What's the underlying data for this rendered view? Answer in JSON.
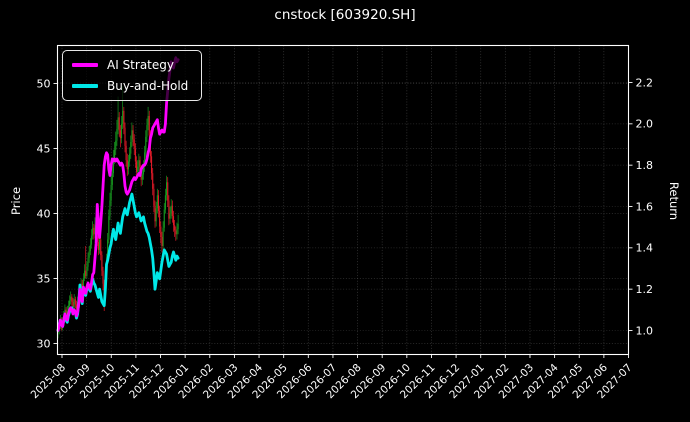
{
  "title": "cnstock [603920.SH]",
  "legend": {
    "entries": [
      {
        "label": "AI Strategy",
        "color": "#ff00ff"
      },
      {
        "label": "Buy-and-Hold",
        "color": "#00e8e8"
      }
    ],
    "position": "upper left"
  },
  "chart_data": {
    "type": "candlestick_with_lines",
    "title": "cnstock [603920.SH]",
    "left_axis": {
      "label": "Price",
      "ticks": [
        30,
        35,
        40,
        45,
        50
      ],
      "ylim": [
        29.2,
        52.9
      ]
    },
    "right_axis": {
      "label": "Return",
      "ticks": [
        "1.0",
        "1.2",
        "1.4",
        "1.6",
        "1.8",
        "2.0",
        "2.2"
      ],
      "ylim": [
        0.89,
        2.38
      ]
    },
    "x_tick_labels": [
      "2025-08",
      "2025-09",
      "2025-10",
      "2025-11",
      "2025-12",
      "2026-01",
      "2026-02",
      "2026-03",
      "2026-04",
      "2026-05",
      "2026-06",
      "2026-07",
      "2026-08",
      "2026-09",
      "2026-10",
      "2026-11",
      "2026-12",
      "2027-01",
      "2027-02",
      "2027-03",
      "2027-04",
      "2027-05",
      "2027-06",
      "2027-07"
    ],
    "data_span": {
      "start": "2025-08",
      "end": "2026-01",
      "trading_days": 105
    },
    "grid": true,
    "background": "#000000",
    "candle_colors": {
      "up": "#17991f",
      "down": "#e01a28"
    },
    "candles_ohlc": [
      [
        30.8,
        31.4,
        30.4,
        31.0
      ],
      [
        31.0,
        31.8,
        30.7,
        31.4
      ],
      [
        31.4,
        32.2,
        31.1,
        31.8
      ],
      [
        31.8,
        32.0,
        31.0,
        31.3
      ],
      [
        31.3,
        32.0,
        31.0,
        31.6
      ],
      [
        31.6,
        32.5,
        31.4,
        32.1
      ],
      [
        32.1,
        33.0,
        31.9,
        32.6
      ],
      [
        32.6,
        32.8,
        31.9,
        32.2
      ],
      [
        32.2,
        32.9,
        32.0,
        32.5
      ],
      [
        32.5,
        33.3,
        32.3,
        32.9
      ],
      [
        32.9,
        33.7,
        32.6,
        33.3
      ],
      [
        33.3,
        34.0,
        33.0,
        33.6
      ],
      [
        33.6,
        33.8,
        32.9,
        33.2
      ],
      [
        33.2,
        33.5,
        32.5,
        32.8
      ],
      [
        32.8,
        33.8,
        32.6,
        33.4
      ],
      [
        33.4,
        33.6,
        32.7,
        33.0
      ],
      [
        33.0,
        33.3,
        32.4,
        32.7
      ],
      [
        32.7,
        33.6,
        32.5,
        33.2
      ],
      [
        33.2,
        34.2,
        33.0,
        33.8
      ],
      [
        33.8,
        34.6,
        33.5,
        34.2
      ],
      [
        34.2,
        35.0,
        33.9,
        34.6
      ],
      [
        34.6,
        34.9,
        33.8,
        34.1
      ],
      [
        34.1,
        35.4,
        33.9,
        35.0
      ],
      [
        35.0,
        36.1,
        34.8,
        35.6
      ],
      [
        35.6,
        37.5,
        35.0,
        35.2
      ],
      [
        35.2,
        36.3,
        35.0,
        35.9
      ],
      [
        35.9,
        37.0,
        35.6,
        36.6
      ],
      [
        36.6,
        37.5,
        36.2,
        37.1
      ],
      [
        37.1,
        38.1,
        36.8,
        37.6
      ],
      [
        37.6,
        38.8,
        37.3,
        38.3
      ],
      [
        38.3,
        39.4,
        38.0,
        38.9
      ],
      [
        38.9,
        39.2,
        38.0,
        38.4
      ],
      [
        38.4,
        39.7,
        38.1,
        39.1
      ],
      [
        39.1,
        39.4,
        38.2,
        38.5
      ],
      [
        38.5,
        40.4,
        37.5,
        37.8
      ],
      [
        37.8,
        38.5,
        36.8,
        37.2
      ],
      [
        37.2,
        38.6,
        36.9,
        38.0
      ],
      [
        38.0,
        38.2,
        36.4,
        36.8
      ],
      [
        36.8,
        37.1,
        35.2,
        35.6
      ],
      [
        35.6,
        35.9,
        34.1,
        34.6
      ],
      [
        34.6,
        34.9,
        32.5,
        33.6
      ],
      [
        33.6,
        35.3,
        33.3,
        34.8
      ],
      [
        34.8,
        36.9,
        34.5,
        36.4
      ],
      [
        36.4,
        38.5,
        36.1,
        38.0
      ],
      [
        38.0,
        40.3,
        37.7,
        39.8
      ],
      [
        39.8,
        41.6,
        39.5,
        41.0
      ],
      [
        41.0,
        43.4,
        40.6,
        42.2
      ],
      [
        42.2,
        43.8,
        41.8,
        43.1
      ],
      [
        43.1,
        44.9,
        42.8,
        44.2
      ],
      [
        44.2,
        45.5,
        43.8,
        44.9
      ],
      [
        44.9,
        46.3,
        44.5,
        45.6
      ],
      [
        45.6,
        47.2,
        45.2,
        46.5
      ],
      [
        46.5,
        49.0,
        46.1,
        47.4
      ],
      [
        47.4,
        47.8,
        45.9,
        46.4
      ],
      [
        46.4,
        46.8,
        45.1,
        45.8
      ],
      [
        45.8,
        47.5,
        45.4,
        46.9
      ],
      [
        46.9,
        49.8,
        46.5,
        47.9
      ],
      [
        47.9,
        48.2,
        46.1,
        46.6
      ],
      [
        46.6,
        47.0,
        44.7,
        45.2
      ],
      [
        45.2,
        45.6,
        43.6,
        44.1
      ],
      [
        44.1,
        44.6,
        42.9,
        43.4
      ],
      [
        43.4,
        44.5,
        43.0,
        44.0
      ],
      [
        44.0,
        45.1,
        43.6,
        44.6
      ],
      [
        44.6,
        46.0,
        44.2,
        45.5
      ],
      [
        45.5,
        47.0,
        45.1,
        46.4
      ],
      [
        46.4,
        46.8,
        45.2,
        45.7
      ],
      [
        45.7,
        46.1,
        44.5,
        45.0
      ],
      [
        45.0,
        45.4,
        43.5,
        44.0
      ],
      [
        44.0,
        44.4,
        42.7,
        43.2
      ],
      [
        43.2,
        44.1,
        42.8,
        43.6
      ],
      [
        43.6,
        44.6,
        43.2,
        44.1
      ],
      [
        44.1,
        44.4,
        42.8,
        43.3
      ],
      [
        43.3,
        43.7,
        42.1,
        42.6
      ],
      [
        42.6,
        43.5,
        42.2,
        43.0
      ],
      [
        43.0,
        44.1,
        42.6,
        43.6
      ],
      [
        43.6,
        45.2,
        43.2,
        44.7
      ],
      [
        44.7,
        46.4,
        44.3,
        45.9
      ],
      [
        45.9,
        47.3,
        45.5,
        46.8
      ],
      [
        46.8,
        48.2,
        46.4,
        47.5
      ],
      [
        47.5,
        47.9,
        45.5,
        46.0
      ],
      [
        46.0,
        46.4,
        43.9,
        44.4
      ],
      [
        44.4,
        44.8,
        42.6,
        43.1
      ],
      [
        43.1,
        43.5,
        41.4,
        41.9
      ],
      [
        41.9,
        42.3,
        40.1,
        40.6
      ],
      [
        40.6,
        41.0,
        38.9,
        39.4
      ],
      [
        39.4,
        40.9,
        39.0,
        40.4
      ],
      [
        40.4,
        41.9,
        40.0,
        41.4
      ],
      [
        41.4,
        41.8,
        39.7,
        40.2
      ],
      [
        40.2,
        40.6,
        38.5,
        39.0
      ],
      [
        39.0,
        39.4,
        37.7,
        38.2
      ],
      [
        38.2,
        38.6,
        37.0,
        37.5
      ],
      [
        37.5,
        39.4,
        37.2,
        38.9
      ],
      [
        38.9,
        40.8,
        38.6,
        40.3
      ],
      [
        40.3,
        41.9,
        40.0,
        41.4
      ],
      [
        41.4,
        42.9,
        41.0,
        42.4
      ],
      [
        42.4,
        42.8,
        40.5,
        41.0
      ],
      [
        41.0,
        41.4,
        39.1,
        39.6
      ],
      [
        39.6,
        40.5,
        39.2,
        40.0
      ],
      [
        40.0,
        41.1,
        39.6,
        40.6
      ],
      [
        40.6,
        41.0,
        39.3,
        39.8
      ],
      [
        39.8,
        40.2,
        38.6,
        39.1
      ],
      [
        39.1,
        39.5,
        38.2,
        38.7
      ],
      [
        38.7,
        39.0,
        37.9,
        38.4
      ],
      [
        38.4,
        39.3,
        38.0,
        38.8
      ],
      [
        38.8,
        39.9,
        38.4,
        39.2
      ]
    ],
    "series": [
      {
        "name": "AI Strategy",
        "axis": "return",
        "color": "#ff00ff",
        "values": [
          1.0,
          1.02,
          1.05,
          1.03,
          1.02,
          1.05,
          1.08,
          1.06,
          1.05,
          1.08,
          1.1,
          1.11,
          1.1,
          1.08,
          1.1,
          1.09,
          1.07,
          1.09,
          1.13,
          1.2,
          1.16,
          1.14,
          1.21,
          1.19,
          1.18,
          1.21,
          1.23,
          1.21,
          1.2,
          1.23,
          1.27,
          1.28,
          1.35,
          1.42,
          1.61,
          1.52,
          1.45,
          1.52,
          1.6,
          1.7,
          1.8,
          1.84,
          1.86,
          1.85,
          1.78,
          1.75,
          1.8,
          1.83,
          1.82,
          1.83,
          1.82,
          1.83,
          1.82,
          1.81,
          1.8,
          1.81,
          1.8,
          1.76,
          1.7,
          1.67,
          1.66,
          1.67,
          1.68,
          1.7,
          1.72,
          1.73,
          1.74,
          1.73,
          1.74,
          1.75,
          1.76,
          1.75,
          1.78,
          1.79,
          1.8,
          1.8,
          1.81,
          1.83,
          1.86,
          1.88,
          1.93,
          1.95,
          1.98,
          1.99,
          2.0,
          2.01,
          2.02,
          1.98,
          1.95,
          1.96,
          1.97,
          1.96,
          1.96,
          2.0,
          2.1,
          2.16,
          2.22,
          2.26,
          2.3,
          2.28,
          2.27,
          2.3,
          2.32,
          2.3,
          2.31
        ]
      },
      {
        "name": "Buy-and-Hold",
        "axis": "return",
        "color": "#00e8e8",
        "values": [
          1.0,
          1.03,
          1.05,
          1.03,
          1.02,
          1.05,
          1.07,
          1.05,
          1.04,
          1.07,
          1.09,
          1.1,
          1.11,
          1.09,
          1.1,
          1.09,
          1.06,
          1.08,
          1.14,
          1.22,
          1.17,
          1.13,
          1.2,
          1.18,
          1.17,
          1.2,
          1.22,
          1.2,
          1.19,
          1.22,
          1.25,
          1.23,
          1.22,
          1.2,
          1.18,
          1.16,
          1.2,
          1.17,
          1.14,
          1.13,
          1.12,
          1.2,
          1.32,
          1.34,
          1.37,
          1.4,
          1.42,
          1.46,
          1.49,
          1.46,
          1.44,
          1.48,
          1.52,
          1.49,
          1.47,
          1.51,
          1.55,
          1.57,
          1.59,
          1.57,
          1.56,
          1.59,
          1.62,
          1.64,
          1.66,
          1.63,
          1.6,
          1.57,
          1.55,
          1.56,
          1.57,
          1.55,
          1.53,
          1.54,
          1.55,
          1.52,
          1.5,
          1.48,
          1.47,
          1.45,
          1.42,
          1.39,
          1.35,
          1.28,
          1.2,
          1.24,
          1.28,
          1.26,
          1.25,
          1.29,
          1.33,
          1.36,
          1.39,
          1.38,
          1.37,
          1.34,
          1.31,
          1.32,
          1.33,
          1.36,
          1.38,
          1.36,
          1.34,
          1.36,
          1.35
        ]
      }
    ]
  }
}
